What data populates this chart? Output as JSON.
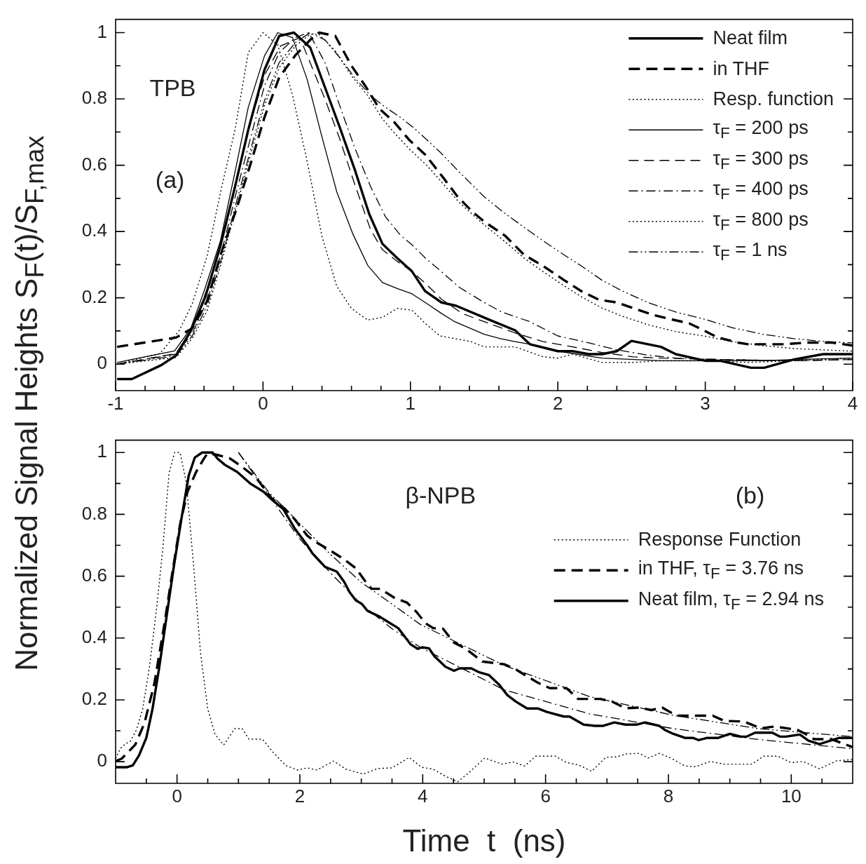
{
  "chart_data": [
    {
      "type": "line",
      "ylabel": "Normalized Signal Heights  S$_{F}$(t)/S$_{F,max}$",
      "annotations": [
        "TPB",
        "(a)"
      ],
      "legend": "top right",
      "xlim": [
        -1,
        4
      ],
      "xticks": [
        -1,
        {
          "value": -0.8,
          "label": null
        },
        {
          "value": -0.6,
          "label": null
        },
        {
          "value": -0.4,
          "label": null
        },
        {
          "value": -0.2,
          "label": null
        },
        0,
        {
          "value": 0.2,
          "label": null
        },
        {
          "value": 0.4,
          "label": null
        },
        {
          "value": 0.6,
          "label": null
        },
        {
          "value": 0.8,
          "label": null
        },
        1,
        {
          "value": 1.2,
          "label": null
        },
        {
          "value": 1.4,
          "label": null
        },
        {
          "value": 1.6,
          "label": null
        },
        {
          "value": 1.8,
          "label": null
        },
        2,
        {
          "value": 2.2,
          "label": null
        },
        {
          "value": 2.4,
          "label": null
        },
        {
          "value": 2.6,
          "label": null
        },
        {
          "value": 2.8,
          "label": null
        },
        3,
        {
          "value": 3.2,
          "label": null
        },
        {
          "value": 3.4,
          "label": null
        },
        {
          "value": 3.6,
          "label": null
        },
        {
          "value": 3.8,
          "label": null
        },
        4
      ],
      "ylim": [
        -0.08,
        1.04
      ],
      "yticks": [
        0,
        {
          "value": 0.1,
          "label": null
        },
        0.2,
        {
          "value": 0.3,
          "label": null
        },
        0.4,
        {
          "value": 0.5,
          "label": null
        },
        0.6,
        {
          "value": 0.7,
          "label": null
        },
        0.8,
        {
          "value": 0.9,
          "label": null
        },
        1
      ],
      "series": [
        {
          "name": "Neat film",
          "color": "#000000",
          "line_style": "solid",
          "x": [
            -0.99,
            -0.89,
            -0.69,
            -0.59,
            -0.49,
            -0.39,
            -0.29,
            -0.19,
            -0.1,
            0.01,
            0.11,
            0.21,
            0.32,
            0.42,
            0.52,
            0.62,
            0.72,
            0.81,
            0.91,
            1.01,
            1.1,
            1.21,
            1.31,
            1.54,
            1.71,
            1.81,
            2.0,
            2.1,
            2.21,
            2.3,
            2.4,
            2.5,
            2.7,
            2.8,
            3.0,
            3.1,
            3.31,
            3.4,
            3.6,
            3.8,
            4.0
          ],
          "values": [
            -0.045,
            -0.045,
            -0.003,
            0.026,
            0.1,
            0.205,
            0.355,
            0.535,
            0.707,
            0.888,
            0.99,
            1.0,
            0.955,
            0.835,
            0.715,
            0.59,
            0.453,
            0.363,
            0.32,
            0.28,
            0.22,
            0.186,
            0.176,
            0.133,
            0.102,
            0.06,
            0.039,
            0.039,
            0.03,
            0.03,
            0.039,
            0.07,
            0.052,
            0.03,
            0.01,
            0.01,
            -0.011,
            -0.011,
            0.014,
            0.03,
            0.03
          ]
        },
        {
          "name": "in THF",
          "color": "#000000",
          "line_style": "dashed",
          "x": [
            -0.99,
            -0.59,
            -0.48,
            -0.38,
            -0.28,
            -0.18,
            -0.08,
            0.01,
            0.11,
            0.22,
            0.32,
            0.38,
            0.49,
            0.6,
            0.7,
            0.79,
            0.89,
            0.99,
            1.1,
            1.22,
            1.32,
            1.42,
            1.5,
            1.64,
            1.77,
            1.9,
            2.04,
            2.16,
            2.28,
            2.4,
            2.51,
            2.65,
            2.76,
            2.89,
            2.99,
            3.08,
            3.22,
            3.29,
            3.54,
            3.69,
            3.86,
            4.0
          ],
          "values": [
            0.052,
            0.08,
            0.108,
            0.19,
            0.34,
            0.468,
            0.61,
            0.745,
            0.865,
            0.932,
            0.978,
            1.0,
            0.99,
            0.9,
            0.835,
            0.77,
            0.73,
            0.677,
            0.632,
            0.564,
            0.505,
            0.46,
            0.43,
            0.388,
            0.33,
            0.296,
            0.254,
            0.22,
            0.194,
            0.186,
            0.169,
            0.148,
            0.136,
            0.123,
            0.102,
            0.081,
            0.065,
            0.06,
            0.06,
            0.065,
            0.065,
            0.056
          ]
        },
        {
          "name": "Resp. function",
          "color": "#000000",
          "line_style": "dotted",
          "x": [
            -0.99,
            -0.7,
            -0.57,
            -0.48,
            -0.38,
            -0.28,
            -0.19,
            -0.1,
            0.0,
            0.1,
            0.2,
            0.3,
            0.4,
            0.5,
            0.6,
            0.71,
            0.81,
            0.91,
            1.01,
            1.1,
            1.2,
            1.41,
            1.5,
            1.71,
            1.9,
            2.0,
            2.1,
            2.3,
            2.51,
            2.7,
            3.0,
            3.29,
            3.58,
            4.0
          ],
          "values": [
            0.0,
            0.032,
            0.1,
            0.182,
            0.325,
            0.535,
            0.707,
            0.94,
            1.0,
            0.963,
            0.812,
            0.61,
            0.385,
            0.235,
            0.168,
            0.133,
            0.141,
            0.168,
            0.163,
            0.123,
            0.085,
            0.068,
            0.052,
            0.052,
            0.022,
            0.018,
            0.03,
            0.005,
            0.005,
            0.01,
            0.01,
            0.005,
            0.01,
            0.018
          ]
        },
        {
          "name": "τ$_{F}$ = 200 ps",
          "color": "#000000",
          "line_style": "solid",
          "x": [
            -0.99,
            -0.6,
            -0.49,
            -0.4,
            -0.29,
            -0.19,
            -0.1,
            0.01,
            0.1,
            0.2,
            0.3,
            0.4,
            0.5,
            0.61,
            0.71,
            0.81,
            0.91,
            1.01,
            1.1,
            1.21,
            1.3,
            1.5,
            1.61,
            1.71,
            1.81,
            2.0,
            2.3,
            2.7,
            3.1,
            3.39,
            3.6,
            4.0
          ],
          "values": [
            0.005,
            0.04,
            0.108,
            0.22,
            0.37,
            0.58,
            0.775,
            0.93,
            1.0,
            0.985,
            0.858,
            0.685,
            0.52,
            0.392,
            0.298,
            0.246,
            0.228,
            0.212,
            0.186,
            0.153,
            0.128,
            0.09,
            0.077,
            0.068,
            0.06,
            0.039,
            0.018,
            0.01,
            0.01,
            0.01,
            0.014,
            0.018
          ]
        },
        {
          "name": "τ$_{F}$ = 300 ps",
          "color": "#000000",
          "line_style": "dashed",
          "x": [
            -0.99,
            -0.59,
            -0.48,
            -0.38,
            -0.28,
            -0.18,
            -0.08,
            0.02,
            0.12,
            0.25,
            0.42,
            0.52,
            0.62,
            0.73,
            0.81,
            0.91,
            1.01,
            1.11,
            1.21,
            1.35,
            1.5,
            1.71,
            1.9,
            2.1,
            2.3,
            2.51,
            2.7,
            3.1,
            3.6,
            4.0
          ],
          "values": [
            0.0,
            0.032,
            0.108,
            0.225,
            0.37,
            0.56,
            0.74,
            0.88,
            0.96,
            0.985,
            0.8,
            0.68,
            0.545,
            0.405,
            0.345,
            0.31,
            0.28,
            0.24,
            0.196,
            0.153,
            0.128,
            0.094,
            0.068,
            0.052,
            0.035,
            0.022,
            0.018,
            0.014,
            0.01,
            0.014
          ]
        },
        {
          "name": "τ$_{F}$ = 400 ps",
          "color": "#000000",
          "line_style": "dashdot",
          "x": [
            -0.99,
            -0.59,
            -0.48,
            -0.38,
            -0.28,
            -0.18,
            -0.07,
            0.01,
            0.11,
            0.22,
            0.31,
            0.42,
            0.52,
            0.62,
            0.73,
            0.83,
            0.93,
            1.01,
            1.11,
            1.2,
            1.33,
            1.5,
            1.62,
            1.81,
            2.0,
            2.21,
            2.4,
            2.61,
            2.8,
            3.1,
            3.6,
            4.0
          ],
          "values": [
            0.0,
            0.03,
            0.093,
            0.19,
            0.34,
            0.52,
            0.707,
            0.84,
            0.94,
            0.985,
            1.0,
            0.91,
            0.78,
            0.655,
            0.535,
            0.445,
            0.39,
            0.36,
            0.316,
            0.283,
            0.232,
            0.186,
            0.157,
            0.128,
            0.085,
            0.064,
            0.043,
            0.027,
            0.018,
            0.014,
            0.01,
            0.014
          ]
        },
        {
          "name": "τ$_{F}$ = 800 ps",
          "color": "#000000",
          "line_style": "dotted",
          "x": [
            -0.99,
            -0.59,
            -0.48,
            -0.38,
            -0.28,
            -0.18,
            -0.07,
            0.01,
            0.11,
            0.22,
            0.32,
            0.38,
            0.49,
            0.6,
            0.71,
            0.81,
            0.89,
            0.99,
            1.11,
            1.2,
            1.33,
            1.5,
            1.64,
            1.77,
            1.9,
            2.04,
            2.16,
            2.3,
            2.44,
            2.61,
            2.8,
            2.99,
            3.18,
            3.39,
            3.6,
            4.0
          ],
          "values": [
            0.0,
            0.02,
            0.078,
            0.16,
            0.31,
            0.475,
            0.655,
            0.78,
            0.895,
            0.96,
            0.995,
            0.995,
            0.945,
            0.87,
            0.81,
            0.74,
            0.698,
            0.65,
            0.6,
            0.555,
            0.488,
            0.42,
            0.37,
            0.32,
            0.279,
            0.237,
            0.203,
            0.169,
            0.144,
            0.119,
            0.098,
            0.085,
            0.068,
            0.056,
            0.047,
            0.039
          ]
        },
        {
          "name": "τ$_{F}$ = 1 ns",
          "color": "#000000",
          "line_style": "dashdotdot",
          "x": [
            -0.99,
            -0.59,
            -0.48,
            -0.38,
            -0.28,
            -0.18,
            -0.07,
            0.01,
            0.11,
            0.22,
            0.32,
            0.42,
            0.52,
            0.62,
            0.73,
            0.83,
            0.93,
            1.03,
            1.2,
            1.33,
            1.5,
            1.64,
            1.77,
            1.9,
            2.04,
            2.16,
            2.3,
            2.44,
            2.61,
            2.8,
            2.99,
            3.18,
            3.39,
            3.6,
            3.81,
            4.0
          ],
          "values": [
            0.0,
            0.025,
            0.085,
            0.175,
            0.32,
            0.49,
            0.67,
            0.795,
            0.91,
            0.97,
            1.0,
            0.978,
            0.925,
            0.865,
            0.81,
            0.775,
            0.745,
            0.71,
            0.64,
            0.58,
            0.505,
            0.455,
            0.413,
            0.372,
            0.33,
            0.296,
            0.253,
            0.22,
            0.186,
            0.157,
            0.136,
            0.11,
            0.09,
            0.077,
            0.068,
            0.064
          ]
        }
      ]
    },
    {
      "type": "line",
      "xlabel": "Time  t  (ns)",
      "annotations": [
        "β-NPB",
        "(b)"
      ],
      "legend": "right",
      "xlim": [
        -1,
        11
      ],
      "xticks": [
        {
          "value": -0.5,
          "label": null
        },
        0,
        {
          "value": 0.5,
          "label": null
        },
        {
          "value": 1,
          "label": null
        },
        {
          "value": 1.5,
          "label": null
        },
        2,
        {
          "value": 2.5,
          "label": null
        },
        {
          "value": 3,
          "label": null
        },
        {
          "value": 3.5,
          "label": null
        },
        4,
        {
          "value": 4.5,
          "label": null
        },
        {
          "value": 5,
          "label": null
        },
        {
          "value": 5.5,
          "label": null
        },
        6,
        {
          "value": 6.5,
          "label": null
        },
        {
          "value": 7,
          "label": null
        },
        {
          "value": 7.5,
          "label": null
        },
        8,
        {
          "value": 8.5,
          "label": null
        },
        {
          "value": 9,
          "label": null
        },
        {
          "value": 9.5,
          "label": null
        },
        10,
        {
          "value": 10.5,
          "label": null
        }
      ],
      "ylim": [
        -0.07,
        1.04
      ],
      "yticks": [
        0,
        {
          "value": 0.1,
          "label": null
        },
        0.2,
        {
          "value": 0.3,
          "label": null
        },
        0.4,
        {
          "value": 0.5,
          "label": null
        },
        0.6,
        {
          "value": 0.7,
          "label": null
        },
        0.8,
        {
          "value": 0.9,
          "label": null
        },
        1
      ],
      "series": [
        {
          "name": "Response Function",
          "color": "#000000",
          "line_style": "dotted",
          "x": [
            -1.0,
            -0.92,
            -0.84,
            -0.76,
            -0.66,
            -0.56,
            -0.45,
            -0.33,
            -0.23,
            -0.13,
            -0.04,
            0.05,
            0.15,
            0.27,
            0.38,
            0.5,
            0.62,
            0.76,
            0.94,
            1.06,
            1.17,
            1.39,
            1.57,
            1.77,
            1.96,
            2.12,
            2.28,
            2.55,
            2.75,
            3.03,
            3.27,
            3.5,
            3.78,
            3.98,
            4.17,
            4.37,
            4.57,
            4.77,
            5.01,
            5.29,
            5.47,
            5.66,
            5.84,
            6.16,
            6.34,
            6.53,
            6.75,
            6.98,
            7.17,
            7.3,
            7.53,
            7.67,
            7.85,
            8.04,
            8.27,
            8.45,
            8.68,
            8.91,
            9.36,
            9.55,
            9.78,
            10.0,
            10.19,
            10.46,
            10.74,
            11.0
          ],
          "values": [
            0.01,
            0.043,
            0.058,
            0.066,
            0.103,
            0.17,
            0.305,
            0.5,
            0.693,
            0.933,
            1.0,
            1.0,
            0.903,
            0.634,
            0.357,
            0.17,
            0.088,
            0.054,
            0.107,
            0.107,
            0.073,
            0.073,
            0.029,
            -0.012,
            -0.027,
            -0.02,
            -0.027,
            0.002,
            -0.024,
            -0.04,
            -0.022,
            -0.02,
            0.014,
            -0.018,
            -0.024,
            -0.047,
            -0.065,
            -0.032,
            0.012,
            -0.008,
            -0.001,
            -0.014,
            0.018,
            0.018,
            -0.003,
            -0.01,
            -0.031,
            0.014,
            0.016,
            0.025,
            0.027,
            0.012,
            0.027,
            0.012,
            -0.014,
            -0.016,
            0.001,
            -0.008,
            -0.008,
            0.018,
            0.018,
            -0.003,
            0.001,
            -0.023,
            0.003,
            0.007
          ]
        },
        {
          "name": "in THF,  τ$_{F}$ = 3.76 ns",
          "color": "#000000",
          "line_style": "dashed",
          "x": [
            -1.0,
            -0.9,
            -0.68,
            -0.53,
            -0.37,
            -0.21,
            -0.07,
            0.05,
            0.17,
            0.31,
            0.44,
            0.5,
            0.66,
            0.86,
            1.05,
            1.29,
            1.53,
            1.76,
            1.92,
            2.12,
            2.28,
            2.47,
            2.71,
            2.91,
            3.07,
            3.17,
            3.31,
            3.54,
            3.74,
            3.9,
            4.05,
            4.17,
            4.33,
            4.51,
            4.69,
            4.97,
            5.33,
            5.52,
            5.7,
            5.88,
            6.07,
            6.34,
            6.53,
            6.89,
            7.08,
            7.3,
            7.53,
            7.72,
            7.9,
            8.13,
            8.72,
            8.91,
            9.23,
            9.5,
            9.73,
            10.1,
            10.23,
            10.37,
            10.65,
            11.0
          ],
          "values": [
            0.002,
            0.01,
            0.055,
            0.125,
            0.252,
            0.44,
            0.619,
            0.768,
            0.873,
            0.937,
            0.981,
            0.998,
            0.992,
            0.981,
            0.955,
            0.918,
            0.854,
            0.817,
            0.783,
            0.731,
            0.708,
            0.686,
            0.656,
            0.626,
            0.582,
            0.559,
            0.559,
            0.53,
            0.515,
            0.484,
            0.447,
            0.432,
            0.43,
            0.385,
            0.367,
            0.324,
            0.315,
            0.298,
            0.276,
            0.255,
            0.238,
            0.238,
            0.203,
            0.203,
            0.195,
            0.173,
            0.175,
            0.167,
            0.175,
            0.149,
            0.149,
            0.132,
            0.13,
            0.108,
            0.114,
            0.103,
            0.09,
            0.073,
            0.073,
            0.047
          ]
        },
        {
          "name": "Neat film, τ$_{F}$ = 2.94 ns",
          "color": "#000000",
          "line_style": "solid",
          "x": [
            -1.0,
            -0.82,
            -0.72,
            -0.62,
            -0.5,
            -0.4,
            -0.29,
            -0.17,
            -0.05,
            0.07,
            0.19,
            0.29,
            0.41,
            0.58,
            0.66,
            0.78,
            0.98,
            1.19,
            1.41,
            1.53,
            1.73,
            1.92,
            2.12,
            2.2,
            2.32,
            2.41,
            2.6,
            2.72,
            2.81,
            2.91,
            3.01,
            3.1,
            3.3,
            3.42,
            3.6,
            3.69,
            3.8,
            3.92,
            3.99,
            4.1,
            4.19,
            4.37,
            4.51,
            4.6,
            4.79,
            4.92,
            5.08,
            5.24,
            5.38,
            5.52,
            5.7,
            5.88,
            6.02,
            6.3,
            6.39,
            6.62,
            6.8,
            6.94,
            7.12,
            7.3,
            7.49,
            7.62,
            7.85,
            7.94,
            8.08,
            8.27,
            8.4,
            8.49,
            8.63,
            8.81,
            9.0,
            9.18,
            9.27,
            9.41,
            9.69,
            9.82,
            9.91,
            10.14,
            10.28,
            10.46,
            10.6,
            10.78,
            11.0
          ],
          "values": [
            -0.018,
            -0.018,
            -0.012,
            0.02,
            0.077,
            0.17,
            0.305,
            0.47,
            0.634,
            0.784,
            0.925,
            0.984,
            1.0,
            1.0,
            0.98,
            0.96,
            0.937,
            0.9,
            0.873,
            0.85,
            0.817,
            0.753,
            0.7,
            0.675,
            0.649,
            0.63,
            0.615,
            0.582,
            0.548,
            0.522,
            0.51,
            0.488,
            0.469,
            0.454,
            0.432,
            0.409,
            0.38,
            0.365,
            0.37,
            0.367,
            0.341,
            0.307,
            0.294,
            0.302,
            0.302,
            0.289,
            0.28,
            0.25,
            0.215,
            0.194,
            0.172,
            0.172,
            0.161,
            0.146,
            0.146,
            0.12,
            0.116,
            0.116,
            0.127,
            0.12,
            0.12,
            0.127,
            0.116,
            0.103,
            0.09,
            0.077,
            0.077,
            0.07,
            0.077,
            0.077,
            0.09,
            0.081,
            0.081,
            0.094,
            0.094,
            0.081,
            0.081,
            0.088,
            0.068,
            0.057,
            0.066,
            0.077,
            0.077
          ]
        },
        {
          "color": "#000000",
          "line_style": "dashdot",
          "x": [
            1.0,
            1.5,
            2.0,
            2.5,
            3.0,
            3.5,
            3.96,
            5.33,
            6.71,
            8.08,
            9.46,
            11.0
          ],
          "values": [
            1.0,
            0.86,
            0.72,
            0.61,
            0.51,
            0.43,
            0.37,
            0.232,
            0.155,
            0.107,
            0.072,
            0.042
          ]
        },
        {
          "color": "#000000",
          "line_style": "dashdotdot",
          "x": [
            1.0,
            1.5,
            2.0,
            2.5,
            3.0,
            3.5,
            3.96,
            5.33,
            6.71,
            8.08,
            9.46,
            11.0
          ],
          "values": [
            1.0,
            0.87,
            0.77,
            0.67,
            0.58,
            0.51,
            0.444,
            0.311,
            0.211,
            0.15,
            0.107,
            0.081
          ]
        }
      ]
    }
  ]
}
